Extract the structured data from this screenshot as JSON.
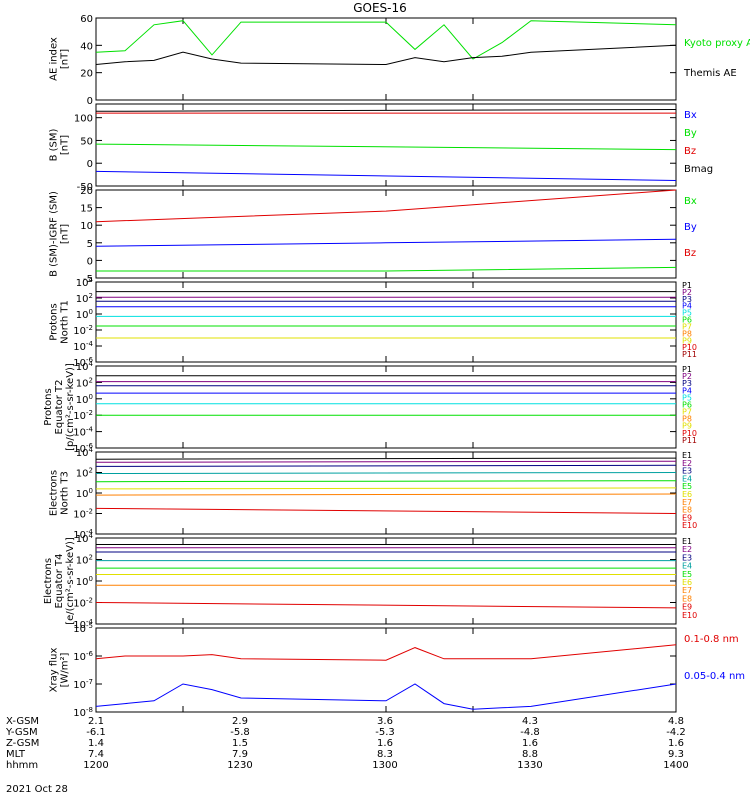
{
  "title": "GOES-16",
  "date": "2021 Oct 28",
  "colors": {
    "black": "#000000",
    "blue": "#0000ff",
    "green": "#00e000",
    "red": "#e00000",
    "navy": "#000080",
    "purple": "#800080",
    "teal": "#00a0a0",
    "cyan": "#00e0e0",
    "orange": "#ff8000",
    "yellow": "#e0e000",
    "darkred": "#a00000"
  },
  "footer": {
    "rows": [
      {
        "label": "X-GSM",
        "values": [
          "2.1",
          "2.9",
          "3.6",
          "4.3",
          "4.8"
        ]
      },
      {
        "label": "Y-GSM",
        "values": [
          "-6.1",
          "-5.8",
          "-5.3",
          "-4.8",
          "-4.2"
        ]
      },
      {
        "label": "Z-GSM",
        "values": [
          "1.4",
          "1.5",
          "1.6",
          "1.6",
          "1.6"
        ]
      },
      {
        "label": "MLT",
        "values": [
          "7.4",
          "7.9",
          "8.3",
          "8.8",
          "9.3"
        ]
      },
      {
        "label": "hhmm",
        "values": [
          "1200",
          "1230",
          "1300",
          "1330",
          "1400"
        ]
      }
    ]
  },
  "chart_data": [
    {
      "type": "line",
      "ylabel": "AE index\n[nT]",
      "ylim": [
        0,
        60
      ],
      "yticks": [
        "0",
        "20",
        "40",
        "60"
      ],
      "x": [
        1200,
        1210,
        1220,
        1230,
        1240,
        1250,
        1300,
        1310,
        1320,
        1330,
        1340,
        1350,
        1400
      ],
      "series": [
        {
          "name": "Kyoto proxy AE",
          "color": "#00e000",
          "values": [
            35,
            36,
            55,
            58,
            33,
            57,
            57,
            37,
            55,
            30,
            42,
            58,
            55
          ]
        },
        {
          "name": "Themis AE",
          "color": "#000000",
          "values": [
            26,
            28,
            29,
            35,
            30,
            27,
            26,
            31,
            28,
            31,
            32,
            35,
            40
          ]
        }
      ],
      "legend": [
        "Kyoto proxy AE",
        "Themis AE"
      ]
    },
    {
      "type": "line",
      "ylabel": "B (SM)\n[nT]",
      "ylim": [
        -50,
        130
      ],
      "yticks": [
        "-50",
        "0",
        "50",
        "100"
      ],
      "x": [
        1200,
        1400
      ],
      "series": [
        {
          "name": "Bmag",
          "color": "#000000",
          "values": [
            114,
            118
          ]
        },
        {
          "name": "Bz",
          "color": "#e00000",
          "values": [
            110,
            110
          ]
        },
        {
          "name": "By",
          "color": "#00e000",
          "values": [
            42,
            30
          ]
        },
        {
          "name": "Bx",
          "color": "#0000ff",
          "values": [
            -18,
            -38
          ]
        }
      ],
      "legend": [
        "Bx",
        "By",
        "Bz",
        "Bmag"
      ]
    },
    {
      "type": "line",
      "ylabel": "B (SM)-IGRF (SM)\n[nT]",
      "ylim": [
        -5,
        20
      ],
      "yticks": [
        "-5",
        "0",
        "5",
        "10",
        "15",
        "20"
      ],
      "x": [
        1200,
        1300,
        1400
      ],
      "series": [
        {
          "name": "Bz",
          "color": "#e00000",
          "values": [
            11,
            14,
            20
          ]
        },
        {
          "name": "By",
          "color": "#0000ff",
          "values": [
            4,
            5,
            6
          ]
        },
        {
          "name": "Bx",
          "color": "#00e000",
          "values": [
            -3,
            -3,
            -2
          ]
        }
      ],
      "legend": [
        "Bx",
        "By",
        "Bz"
      ]
    },
    {
      "type": "line",
      "ylabel": "Protons\nNorth T1",
      "ylim": [
        -6,
        4
      ],
      "yticks": [
        "10^-6",
        "10^-4",
        "10^-2",
        "10^0",
        "10^2",
        "10^4"
      ],
      "x": [
        1200,
        1400
      ],
      "series": [
        {
          "name": "P1",
          "color": "#000000",
          "values": [
            2.8,
            2.8
          ]
        },
        {
          "name": "P2",
          "color": "#800080",
          "values": [
            2.1,
            2.1
          ]
        },
        {
          "name": "P3",
          "color": "#000080",
          "values": [
            1.6,
            1.6
          ]
        },
        {
          "name": "P4",
          "color": "#0000ff",
          "values": [
            0.9,
            0.9
          ]
        },
        {
          "name": "P5",
          "color": "#00e0e0",
          "values": [
            -0.3,
            -0.3
          ]
        },
        {
          "name": "P6",
          "color": "#00e000",
          "values": [
            -1.5,
            -1.5
          ]
        },
        {
          "name": "P7",
          "color": "#e0e000",
          "values": [
            -3.0,
            -3.0
          ]
        }
      ],
      "legend": [
        "P1",
        "P2",
        "P3",
        "P4",
        "P5",
        "P6",
        "P7",
        "P8",
        "P9",
        "P10",
        "P11"
      ]
    },
    {
      "type": "line",
      "ylabel": "Protons\nEquator T2\n[p/(cm²-s-sr-keV)]",
      "ylim": [
        -6,
        4
      ],
      "yticks": [
        "10^-6",
        "10^-4",
        "10^-2",
        "10^0",
        "10^2",
        "10^4"
      ],
      "x": [
        1200,
        1400
      ],
      "series": [
        {
          "name": "P1",
          "color": "#000000",
          "values": [
            2.8,
            2.8
          ]
        },
        {
          "name": "P2",
          "color": "#800080",
          "values": [
            2.1,
            2.1
          ]
        },
        {
          "name": "P3",
          "color": "#000080",
          "values": [
            1.6,
            1.6
          ]
        },
        {
          "name": "P4",
          "color": "#0000ff",
          "values": [
            0.7,
            0.7
          ]
        },
        {
          "name": "P5",
          "color": "#00e0e0",
          "values": [
            -0.6,
            -0.6
          ]
        },
        {
          "name": "P6",
          "color": "#00e000",
          "values": [
            -2.0,
            -2.0
          ]
        }
      ],
      "legend": [
        "P1",
        "P2",
        "P3",
        "P4",
        "P5",
        "P6",
        "P7",
        "P8",
        "P9",
        "P10",
        "P11"
      ]
    },
    {
      "type": "line",
      "ylabel": "Electrons\nNorth T3",
      "ylim": [
        -4,
        4
      ],
      "yticks": [
        "10^-4",
        "10^-2",
        "10^0",
        "10^2",
        "10^4"
      ],
      "x": [
        1200,
        1400
      ],
      "series": [
        {
          "name": "E1",
          "color": "#000000",
          "values": [
            3.3,
            3.4
          ]
        },
        {
          "name": "E2",
          "color": "#800080",
          "values": [
            3.0,
            3.1
          ]
        },
        {
          "name": "E3",
          "color": "#000080",
          "values": [
            2.6,
            2.7
          ]
        },
        {
          "name": "E4",
          "color": "#00a0a0",
          "values": [
            1.9,
            2.0
          ]
        },
        {
          "name": "E5",
          "color": "#00e000",
          "values": [
            1.1,
            1.2
          ]
        },
        {
          "name": "E6",
          "color": "#e0e000",
          "values": [
            0.4,
            0.5
          ]
        },
        {
          "name": "E7",
          "color": "#ff8000",
          "values": [
            -0.2,
            -0.1
          ]
        },
        {
          "name": "E9",
          "color": "#e00000",
          "values": [
            -1.5,
            -2.0
          ]
        }
      ],
      "legend": [
        "E1",
        "E2",
        "E3",
        "E4",
        "E5",
        "E6",
        "E7",
        "E8",
        "E9",
        "E10"
      ]
    },
    {
      "type": "line",
      "ylabel": "Electrons\nEquator T4\n[e/(cm²-s-sr-keV)]",
      "ylim": [
        -4,
        4
      ],
      "yticks": [
        "10^-4",
        "10^-2",
        "10^0",
        "10^2",
        "10^4"
      ],
      "x": [
        1200,
        1400
      ],
      "series": [
        {
          "name": "E1",
          "color": "#000000",
          "values": [
            3.4,
            3.4
          ]
        },
        {
          "name": "E2",
          "color": "#800080",
          "values": [
            3.1,
            3.1
          ]
        },
        {
          "name": "E3",
          "color": "#000080",
          "values": [
            2.7,
            2.7
          ]
        },
        {
          "name": "E4",
          "color": "#00a0a0",
          "values": [
            1.9,
            1.9
          ]
        },
        {
          "name": "E5",
          "color": "#00e000",
          "values": [
            1.2,
            1.2
          ]
        },
        {
          "name": "E6",
          "color": "#e0e000",
          "values": [
            0.6,
            0.6
          ]
        },
        {
          "name": "E7",
          "color": "#ff8000",
          "values": [
            -0.4,
            -0.4
          ]
        },
        {
          "name": "E9",
          "color": "#e00000",
          "values": [
            -2.0,
            -2.5
          ]
        }
      ],
      "legend": [
        "E1",
        "E2",
        "E3",
        "E4",
        "E5",
        "E6",
        "E7",
        "E8",
        "E9",
        "E10"
      ]
    },
    {
      "type": "line",
      "ylabel": "Xray flux\n[W/m²]",
      "ylim": [
        -8,
        -5
      ],
      "yticks": [
        "10^-8",
        "10^-7",
        "10^-6",
        "10^-5"
      ],
      "x": [
        1200,
        1210,
        1220,
        1230,
        1240,
        1250,
        1300,
        1310,
        1320,
        1330,
        1340,
        1350,
        1400
      ],
      "series": [
        {
          "name": "0.1-0.8 nm",
          "color": "#e00000",
          "values": [
            -6.1,
            -6.0,
            -6.0,
            -6.0,
            -5.95,
            -6.1,
            -6.15,
            -5.7,
            -6.1,
            -6.1,
            -6.1,
            -6.1,
            -5.6
          ]
        },
        {
          "name": "0.05-0.4 nm",
          "color": "#0000ff",
          "values": [
            -7.8,
            -7.7,
            -7.6,
            -7.0,
            -7.2,
            -7.5,
            -7.6,
            -7.0,
            -7.7,
            -7.9,
            -7.85,
            -7.8,
            -7.0
          ]
        }
      ],
      "legend": [
        "0.1-0.8 nm",
        "0.05-0.4 nm"
      ]
    }
  ]
}
